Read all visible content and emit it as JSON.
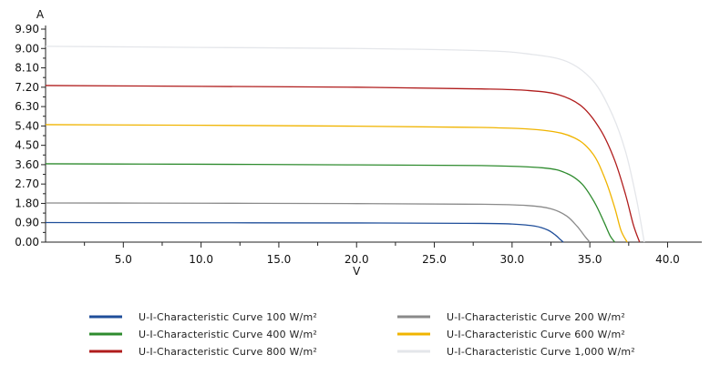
{
  "chart_data": {
    "type": "line",
    "title": "",
    "xlabel": "V",
    "ylabel": "A",
    "xlim": [
      0,
      42.2
    ],
    "ylim": [
      0,
      9.9
    ],
    "xticks": [
      "5.0",
      "10.0",
      "15.0",
      "20.0",
      "25.0",
      "30.0",
      "35.0",
      "40.0"
    ],
    "yticks": [
      "0.00",
      "0.90",
      "1.80",
      "2.70",
      "3.60",
      "4.50",
      "5.40",
      "6.30",
      "7.20",
      "8.10",
      "9.00",
      "9.90"
    ],
    "grid": false,
    "legend_position": "bottom",
    "series": [
      {
        "name": "U-I-Characteristic Curve 100 W/m²",
        "color": "#1f4e9a",
        "x": [
          0,
          10,
          20,
          28,
          30,
          31.5,
          32.3,
          32.8,
          33.1,
          33.3
        ],
        "y": [
          0.91,
          0.9,
          0.89,
          0.87,
          0.84,
          0.74,
          0.56,
          0.32,
          0.12,
          0.0
        ]
      },
      {
        "name": "U-I-Characteristic Curve 200 W/m²",
        "color": "#8a8a8a",
        "x": [
          0,
          10,
          20,
          28,
          31,
          32.5,
          33.5,
          34.2,
          34.7,
          35.0
        ],
        "y": [
          1.82,
          1.81,
          1.79,
          1.76,
          1.7,
          1.55,
          1.22,
          0.72,
          0.25,
          0.0
        ]
      },
      {
        "name": "U-I-Characteristic Curve 400 W/m²",
        "color": "#2e8b2e",
        "x": [
          0,
          10,
          20,
          28,
          32,
          33.5,
          34.5,
          35.3,
          35.9,
          36.3,
          36.6
        ],
        "y": [
          3.64,
          3.62,
          3.59,
          3.56,
          3.45,
          3.2,
          2.7,
          1.85,
          0.95,
          0.3,
          0.0
        ]
      },
      {
        "name": "U-I-Characteristic Curve 600 W/m²",
        "color": "#f0b400",
        "x": [
          0,
          10,
          20,
          28,
          32,
          34,
          35.2,
          36.0,
          36.6,
          37.0,
          37.4
        ],
        "y": [
          5.46,
          5.43,
          5.39,
          5.33,
          5.2,
          4.85,
          4.1,
          2.9,
          1.6,
          0.55,
          0.0
        ]
      },
      {
        "name": "U-I-Characteristic Curve 800 W/m²",
        "color": "#b01c1c",
        "x": [
          0,
          10,
          20,
          28,
          31,
          33,
          34.5,
          35.7,
          36.6,
          37.3,
          37.8,
          38.2
        ],
        "y": [
          7.28,
          7.24,
          7.2,
          7.12,
          7.05,
          6.85,
          6.3,
          5.2,
          3.8,
          2.2,
          0.8,
          0.0
        ]
      },
      {
        "name": "U-I-Characteristic Curve 1,000 W/m²",
        "color": "#e4e6ea",
        "x": [
          0,
          10,
          20,
          28,
          31,
          33.5,
          35.2,
          36.4,
          37.3,
          38.0,
          38.5
        ],
        "y": [
          9.1,
          9.05,
          9.0,
          8.9,
          8.75,
          8.4,
          7.5,
          6.0,
          4.2,
          2.0,
          0.0
        ]
      }
    ]
  }
}
